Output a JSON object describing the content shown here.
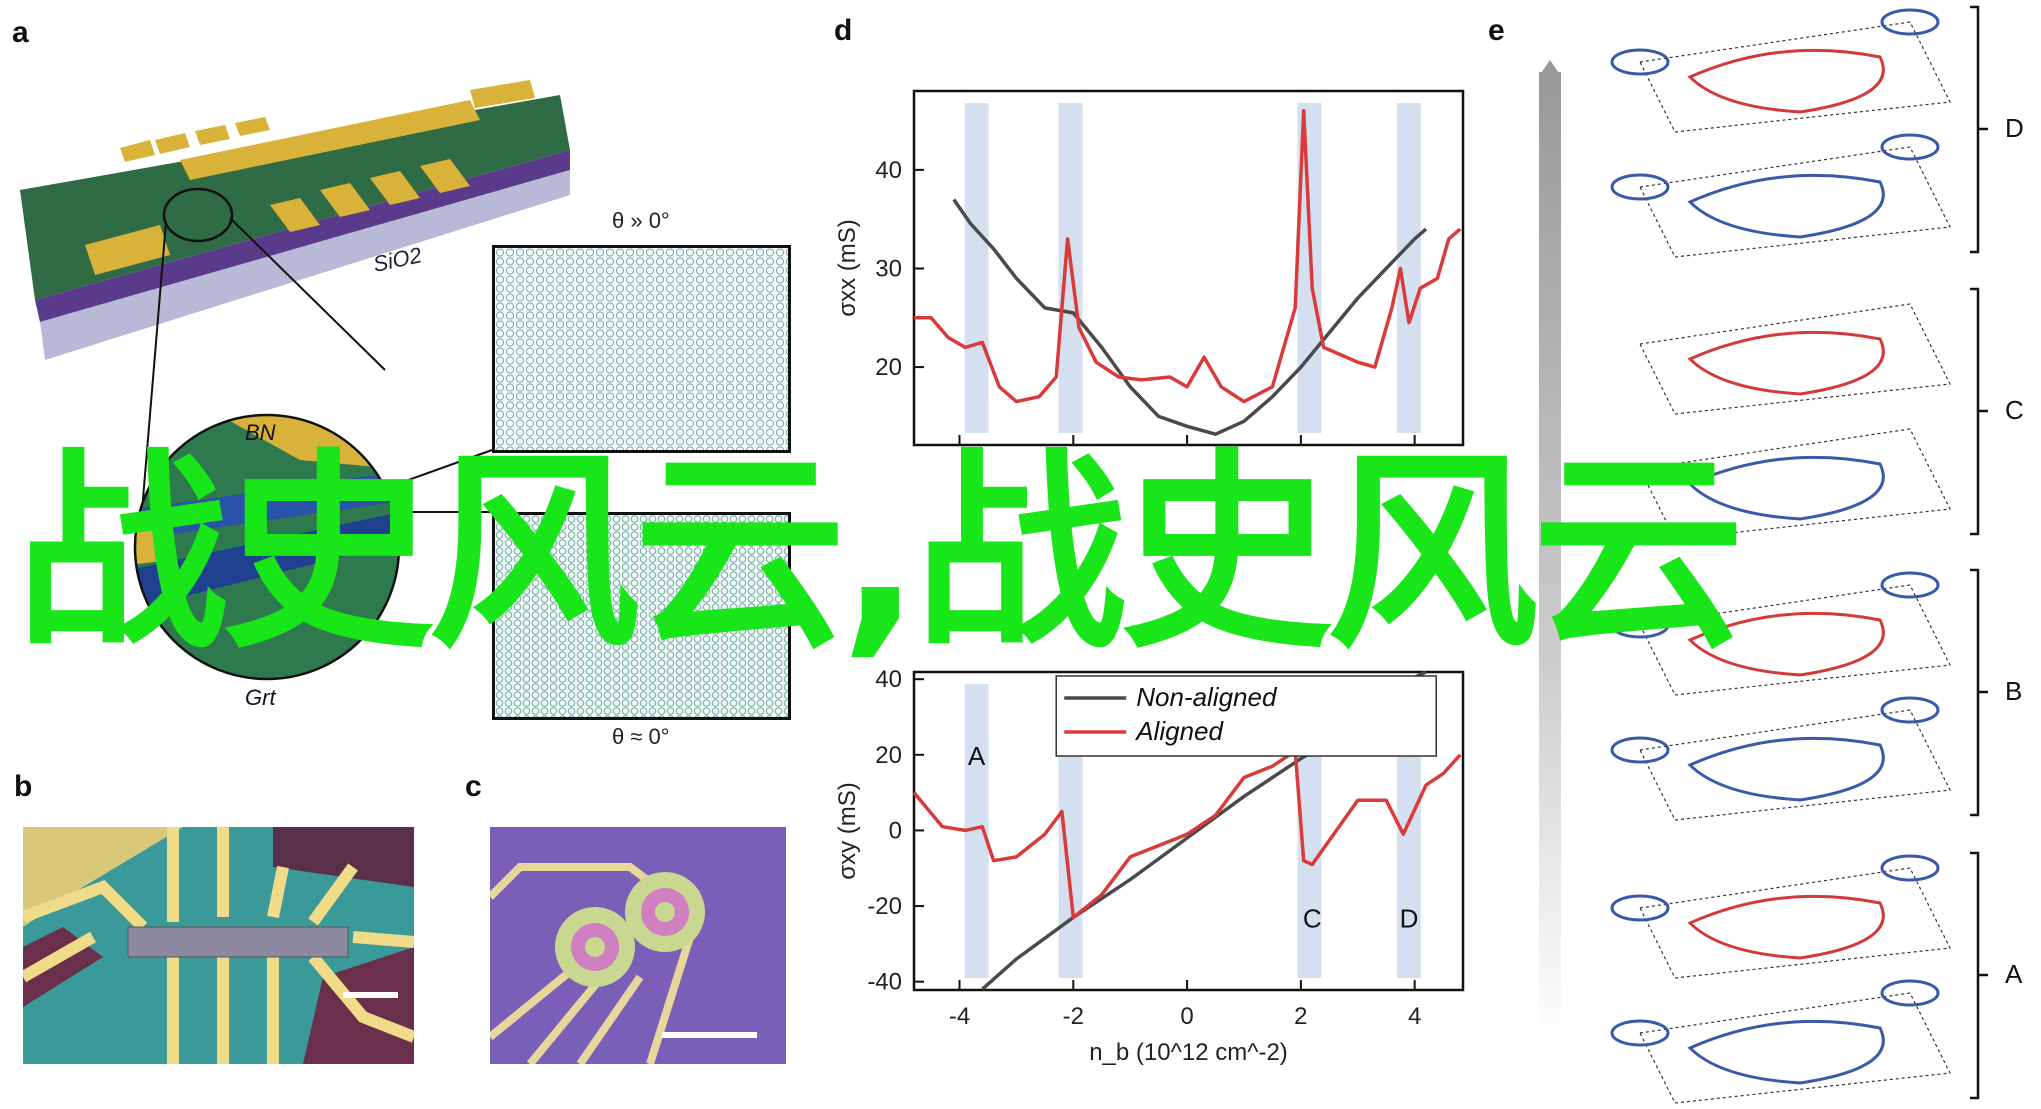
{
  "panels": {
    "a": {
      "label": "a",
      "substrate": "SiO2",
      "layer_top": "BN",
      "layer_mid": "Grt",
      "inset_top_title": "θ » 0°",
      "inset_bottom_title": "θ ≈ 0°"
    },
    "b": {
      "label": "b"
    },
    "c": {
      "label": "c"
    },
    "d": {
      "label": "d"
    },
    "e": {
      "label": "e",
      "groups": [
        "D",
        "C",
        "B",
        "A"
      ]
    }
  },
  "overlay_text": "战史风云,战史风云",
  "colors": {
    "overlay": "#19e619",
    "aligned": "#d93a3a",
    "non_aligned": "#4a4a4a",
    "band": "#9fbadc"
  },
  "chart_data": {
    "type": "line",
    "xlabel": "n_b (10^12 cm^-2)",
    "xlim": [
      -4.8,
      4.85
    ],
    "xticks": [
      -4,
      -2,
      0,
      2,
      4
    ],
    "legend": [
      "Non-aligned",
      "Aligned"
    ],
    "legend_placement": "top-center of lower panel",
    "bands_x": [
      -3.7,
      -2.05,
      2.15,
      3.9
    ],
    "band_labels": [
      {
        "text": "A",
        "x": -3.7,
        "y": 20
      },
      {
        "text": "C",
        "x": 2.2,
        "y": -23
      },
      {
        "text": "D",
        "x": 3.9,
        "y": -23
      }
    ],
    "top": {
      "ylabel": "σxx (mS)",
      "ylim": [
        12.1,
        48
      ],
      "yticks": [
        20,
        30,
        40
      ],
      "series": [
        {
          "name": "Non-aligned",
          "x": [
            -4.1,
            -3.8,
            -3.4,
            -3,
            -2.5,
            -2,
            -1.5,
            -1,
            -0.5,
            0,
            0.5,
            1,
            1.5,
            2,
            2.5,
            3,
            3.5,
            4,
            4.2
          ],
          "y": [
            37,
            34.5,
            32,
            29,
            26,
            25.5,
            22,
            18,
            15,
            14,
            13.2,
            14.5,
            17,
            20,
            23.5,
            27,
            30,
            33,
            34
          ]
        },
        {
          "name": "Aligned",
          "x": [
            -4.8,
            -4.5,
            -4.2,
            -3.9,
            -3.6,
            -3.3,
            -3,
            -2.6,
            -2.3,
            -2.1,
            -1.9,
            -1.6,
            -1.2,
            -0.8,
            -0.3,
            0,
            0.3,
            0.6,
            1,
            1.5,
            1.9,
            2.05,
            2.2,
            2.4,
            3,
            3.3,
            3.6,
            3.75,
            3.9,
            4.1,
            4.4,
            4.6,
            4.8
          ],
          "y": [
            25,
            25,
            23,
            22,
            22.5,
            18,
            16.5,
            17,
            19,
            33,
            24,
            20.5,
            19,
            18.7,
            19,
            18,
            21,
            18,
            16.5,
            18,
            26,
            46,
            28,
            22,
            20.5,
            20,
            26,
            30,
            24.5,
            28,
            29,
            33,
            34
          ]
        }
      ]
    },
    "bottom": {
      "ylabel": "σxy (mS)",
      "ylim": [
        -42.2,
        41.9
      ],
      "yticks": [
        -40,
        -20,
        0,
        20,
        40
      ],
      "series": [
        {
          "name": "Non-aligned",
          "x": [
            -3.6,
            -3,
            -2,
            -1,
            0,
            1,
            2,
            3,
            3.5,
            4,
            4.2
          ],
          "y": [
            -42,
            -34,
            -23,
            -13,
            -2,
            9,
            19,
            28,
            33,
            40.5,
            41.9
          ]
        },
        {
          "name": "Aligned",
          "x": [
            -4.8,
            -4.3,
            -3.9,
            -3.6,
            -3.4,
            -3,
            -2.5,
            -2.2,
            -2,
            -1.5,
            -1,
            -0.5,
            0,
            0.5,
            1,
            1.5,
            1.9,
            2.05,
            2.2,
            3,
            3.5,
            3.8,
            4.2,
            4.5,
            4.8
          ],
          "y": [
            10,
            1,
            0,
            1,
            -8,
            -7,
            -1,
            5,
            -23,
            -17,
            -7,
            -4,
            -1,
            4,
            14,
            17,
            21,
            -8,
            -9,
            8,
            8,
            -1,
            12,
            15,
            20
          ]
        }
      ]
    }
  }
}
